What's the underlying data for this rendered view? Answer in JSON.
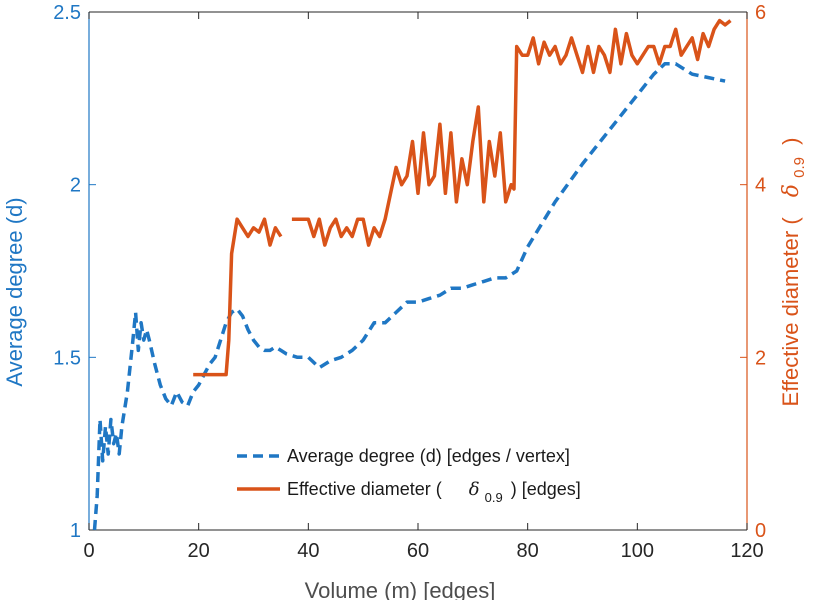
{
  "chart_data": {
    "type": "line",
    "xlabel": "Volume (m) [edges]",
    "ylabel_left": "Average degree (d)",
    "ylabel_right_main": "Effective diameter (",
    "ylabel_right_symbol": "δ",
    "ylabel_right_sub": "0.9",
    "ylabel_right_close": ")",
    "xlim": [
      0,
      120
    ],
    "ylim_left": [
      1,
      2.5
    ],
    "ylim_right": [
      0,
      6
    ],
    "xticks": [
      "0",
      "20",
      "40",
      "60",
      "80",
      "100",
      "120"
    ],
    "xtick_values": [
      0,
      20,
      40,
      60,
      80,
      100,
      120
    ],
    "yticks_left": [
      "1",
      "1.5",
      "2",
      "2.5"
    ],
    "ytick_values_left": [
      1,
      1.5,
      2,
      2.5
    ],
    "yticks_right": [
      "0",
      "2",
      "4",
      "6"
    ],
    "ytick_values_right": [
      0,
      2,
      4,
      6
    ],
    "grid": false,
    "legend_position": "bottom-right",
    "colors": {
      "left": "#1f77c4",
      "right": "#d95319",
      "axes": "#262626"
    },
    "legend": [
      {
        "text": "Average degree (d) [edges / vertex]",
        "style": "dashed",
        "color": "#1f77c4"
      },
      {
        "text_main": "Effective diameter (",
        "symbol": "δ",
        "sub": "0.9",
        "text_tail": ") [edges]",
        "style": "solid",
        "color": "#d95319"
      }
    ],
    "series": [
      {
        "axis": "left",
        "style": "dashed",
        "color": "#1f77c4",
        "x": [
          1,
          1.5,
          2,
          2.5,
          3,
          3.5,
          4,
          4.5,
          5,
          5.5,
          6,
          7,
          8,
          8.5,
          9,
          9.5,
          10,
          10.5,
          11,
          12,
          13,
          14,
          15,
          16,
          17,
          18,
          19,
          20,
          21,
          22,
          23,
          24,
          25,
          26,
          27,
          28,
          29,
          30,
          31,
          32,
          33,
          34,
          35,
          36,
          38,
          40,
          42,
          44,
          46,
          48,
          50,
          52,
          54,
          56,
          58,
          60,
          62,
          64,
          66,
          68,
          70,
          72,
          74,
          76,
          78,
          80,
          85,
          90,
          95,
          100,
          103,
          105,
          107,
          110,
          113,
          116
        ],
        "y": [
          1.0,
          1.1,
          1.32,
          1.2,
          1.3,
          1.22,
          1.32,
          1.25,
          1.28,
          1.22,
          1.3,
          1.4,
          1.55,
          1.63,
          1.52,
          1.6,
          1.55,
          1.58,
          1.55,
          1.48,
          1.42,
          1.38,
          1.36,
          1.4,
          1.37,
          1.36,
          1.4,
          1.42,
          1.45,
          1.48,
          1.5,
          1.55,
          1.6,
          1.63,
          1.64,
          1.62,
          1.58,
          1.55,
          1.53,
          1.52,
          1.52,
          1.53,
          1.52,
          1.51,
          1.5,
          1.5,
          1.47,
          1.49,
          1.5,
          1.52,
          1.55,
          1.6,
          1.6,
          1.63,
          1.66,
          1.66,
          1.67,
          1.68,
          1.7,
          1.7,
          1.71,
          1.72,
          1.73,
          1.73,
          1.75,
          1.82,
          1.95,
          2.06,
          2.16,
          2.26,
          2.32,
          2.35,
          2.35,
          2.32,
          2.31,
          2.3
        ]
      },
      {
        "axis": "right",
        "style": "solid",
        "color": "#d95319",
        "segments": [
          {
            "x": [
              19,
              25,
              25.5,
              26,
              27,
              28,
              29,
              30,
              31,
              32,
              33,
              34,
              35
            ],
            "y": [
              1.8,
              1.8,
              2.2,
              3.2,
              3.6,
              3.5,
              3.4,
              3.5,
              3.45,
              3.6,
              3.3,
              3.5,
              3.4
            ]
          },
          {
            "x": [
              37,
              40,
              41,
              42,
              43,
              44,
              45,
              46,
              47,
              48,
              49,
              50,
              51,
              52,
              53,
              54,
              55,
              56,
              57,
              58,
              59,
              60,
              61,
              62,
              63,
              64,
              65,
              66,
              67,
              68,
              69,
              70,
              71,
              72,
              73,
              74,
              75,
              76,
              77,
              77.5,
              78,
              79,
              80,
              81,
              82,
              83,
              84,
              85,
              86,
              87,
              88,
              89,
              90,
              91,
              92,
              93,
              94,
              95,
              96,
              97,
              98,
              99,
              100,
              101,
              102,
              103,
              104,
              105,
              106,
              107,
              108,
              109,
              110,
              111,
              112,
              113,
              114,
              115,
              116,
              117
            ],
            "y": [
              3.6,
              3.6,
              3.4,
              3.6,
              3.3,
              3.5,
              3.6,
              3.4,
              3.5,
              3.4,
              3.6,
              3.6,
              3.3,
              3.5,
              3.4,
              3.6,
              3.9,
              4.2,
              4.0,
              4.1,
              4.5,
              3.9,
              4.6,
              4.0,
              4.1,
              4.7,
              3.9,
              4.6,
              3.8,
              4.3,
              4.0,
              4.5,
              4.9,
              3.8,
              4.5,
              4.1,
              4.6,
              3.8,
              4.0,
              3.95,
              5.6,
              5.5,
              5.5,
              5.7,
              5.4,
              5.65,
              5.5,
              5.6,
              5.4,
              5.5,
              5.7,
              5.5,
              5.3,
              5.6,
              5.3,
              5.6,
              5.5,
              5.3,
              5.8,
              5.4,
              5.75,
              5.5,
              5.4,
              5.5,
              5.6,
              5.6,
              5.4,
              5.6,
              5.6,
              5.8,
              5.5,
              5.6,
              5.7,
              5.45,
              5.75,
              5.6,
              5.8,
              5.9,
              5.85,
              5.9
            ]
          }
        ]
      }
    ]
  }
}
